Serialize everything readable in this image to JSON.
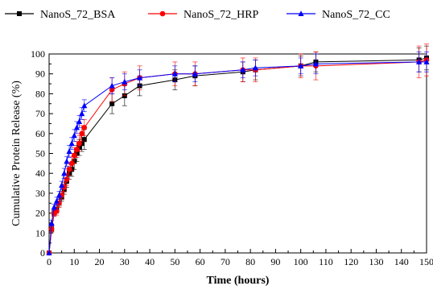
{
  "chart_data": {
    "type": "line",
    "title": "",
    "xlabel": "Time (hours)",
    "ylabel": "Cumulative Protein Release (%)",
    "xlim": [
      0,
      150
    ],
    "ylim": [
      0,
      100
    ],
    "x_ticks": [
      "0",
      "10",
      "20",
      "30",
      "40",
      "50",
      "60",
      "70",
      "80",
      "90",
      "100",
      "110",
      "120",
      "130",
      "140",
      "150"
    ],
    "y_ticks": [
      "0",
      "10",
      "20",
      "30",
      "40",
      "50",
      "60",
      "70",
      "80",
      "90",
      "100"
    ],
    "grid": false,
    "legend_position": "top",
    "series": [
      {
        "name": "NanoS_72_BSA",
        "color": "#000000",
        "marker": "square",
        "x": [
          0,
          1,
          2,
          3,
          4,
          5,
          6,
          7,
          8,
          9,
          10,
          11,
          12,
          13,
          14,
          25,
          30,
          36,
          50,
          58,
          77,
          82,
          100,
          106,
          147,
          150
        ],
        "y": [
          0,
          12,
          20,
          22,
          25,
          28,
          32,
          36,
          40,
          42,
          46,
          50,
          53,
          55,
          57,
          75,
          79,
          84,
          87,
          89,
          91,
          92,
          94,
          96,
          97,
          98
        ],
        "err": [
          0,
          1.5,
          1.5,
          2,
          2,
          2,
          2.5,
          3,
          3,
          3.5,
          4,
          4,
          4,
          4,
          5,
          5,
          5,
          5,
          5,
          5,
          5,
          5,
          5,
          5,
          6,
          6
        ]
      },
      {
        "name": "NanoS_72_HRP",
        "color": "#ff0000",
        "marker": "circle",
        "x": [
          0,
          1,
          2,
          3,
          4,
          5,
          6,
          7,
          8,
          9,
          10,
          11,
          12,
          13,
          14,
          25,
          30,
          36,
          50,
          58,
          77,
          82,
          100,
          106,
          147,
          150
        ],
        "y": [
          0,
          12,
          20,
          21,
          25,
          29,
          33,
          37,
          42,
          45,
          49,
          52,
          55,
          60,
          63,
          82,
          85,
          88,
          90,
          90,
          92,
          92,
          94,
          94,
          96,
          97
        ],
        "err": [
          0,
          1.5,
          1.5,
          2,
          2,
          2,
          2.5,
          3,
          3,
          3.5,
          4,
          4,
          4,
          4,
          4,
          6,
          6,
          6,
          6,
          6,
          6,
          6,
          6,
          7,
          8,
          8
        ]
      },
      {
        "name": "NanoS_72_CC",
        "color": "#0000ff",
        "marker": "triangle",
        "x": [
          0,
          1,
          2,
          3,
          4,
          5,
          6,
          7,
          8,
          9,
          10,
          11,
          12,
          13,
          14,
          25,
          30,
          36,
          50,
          58,
          77,
          82,
          100,
          106,
          147,
          150
        ],
        "y": [
          0,
          15,
          23,
          26,
          29,
          34,
          40,
          46,
          51,
          55,
          59,
          63,
          66,
          70,
          74,
          84,
          86,
          88,
          90,
          90,
          92,
          93,
          94,
          95,
          96,
          96
        ],
        "err": [
          0,
          1.5,
          1.5,
          2,
          2,
          2,
          2.5,
          2.5,
          3,
          3,
          3,
          3,
          3,
          3,
          3,
          4,
          4,
          4,
          4,
          4,
          4,
          4,
          4,
          5,
          5,
          5
        ]
      }
    ]
  }
}
